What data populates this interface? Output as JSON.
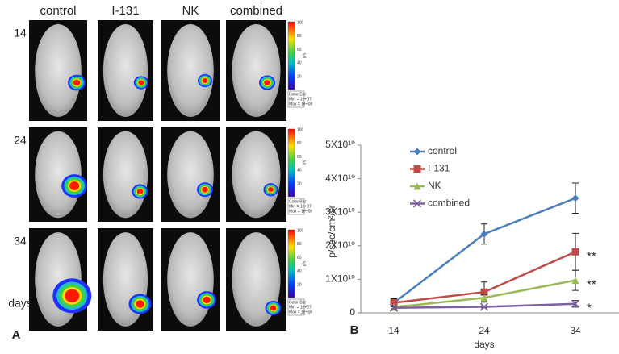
{
  "panel_a": {
    "label": "A",
    "columns": [
      "control",
      "I-131",
      "NK",
      "combined"
    ],
    "rows": [
      "14",
      "24",
      "34"
    ],
    "row_footer": "days",
    "colorbar": {
      "ticks": [
        100,
        80,
        60,
        40,
        20
      ],
      "unit": "p/s",
      "text": [
        "Color Bar",
        "Min = 1e+07",
        "Max = 1e+08"
      ]
    }
  },
  "chart_data": {
    "type": "line",
    "panel_label": "B",
    "x_label": "days",
    "y_label": "p/sec/cm²/sr",
    "categories": [
      "14",
      "24",
      "34"
    ],
    "ylim": [
      0,
      50000000000
    ],
    "yticks": [
      0,
      {
        "value": 10000000000,
        "label": "1X10¹⁰"
      },
      {
        "value": 20000000000,
        "label": "2X10¹⁰"
      },
      {
        "value": 30000000000,
        "label": "3X10¹⁰"
      },
      {
        "value": 40000000000,
        "label": "4X10¹⁰"
      },
      {
        "value": 50000000000,
        "label": "5X10¹⁰"
      }
    ],
    "legend": "top-left",
    "series": [
      {
        "name": "control",
        "color": "#4a7ebb",
        "marker": "diamond",
        "values": [
          3000000000,
          23500000000,
          34200000000
        ],
        "errors": [
          1000000000,
          3000000000,
          4500000000
        ]
      },
      {
        "name": "I-131",
        "color": "#be4b48",
        "marker": "square",
        "values": [
          3000000000,
          6200000000,
          18200000000
        ],
        "errors": [
          1200000000,
          3000000000,
          5500000000
        ]
      },
      {
        "name": "NK",
        "color": "#98b954",
        "marker": "triangle",
        "values": [
          1700000000,
          4500000000,
          9700000000
        ],
        "errors": [
          500000000,
          1000000000,
          3000000000
        ]
      },
      {
        "name": "combined",
        "color": "#7d60a0",
        "marker": "x",
        "values": [
          1500000000,
          1800000000,
          2700000000
        ],
        "errors": [
          300000000,
          300000000,
          1000000000
        ]
      }
    ],
    "annotations": [
      "",
      "**",
      "**",
      "*"
    ]
  }
}
